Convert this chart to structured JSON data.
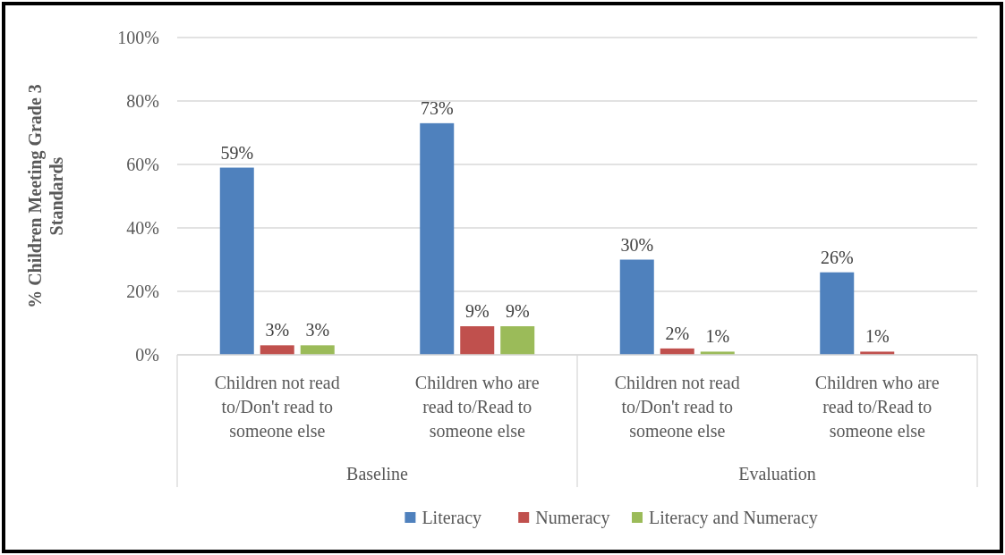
{
  "chart_data": {
    "type": "bar",
    "ylabel": "% Children Meeting Grade 3 Standards",
    "categories": [
      "Children not read to/Don't read to someone else",
      "Children who are read to/Read to someone else",
      "Children not read to/Don't read to someone else",
      "Children who are read to/Read to someone else"
    ],
    "annotations": [
      "Baseline",
      "Evaluation"
    ],
    "series": [
      {
        "name": "Literacy",
        "color": "#4f81bd",
        "values": [
          59,
          73,
          30,
          26
        ],
        "value_labels": [
          "59%",
          "73%",
          "30%",
          "26%"
        ]
      },
      {
        "name": "Numeracy",
        "color": "#c0504d",
        "values": [
          3,
          9,
          2,
          1
        ],
        "value_labels": [
          "3%",
          "9%",
          "2%",
          "1%"
        ]
      },
      {
        "name": "Literacy and Numeracy",
        "color": "#9bbb59",
        "values": [
          3,
          9,
          1,
          null
        ],
        "value_labels": [
          "3%",
          "9%",
          "1%",
          null
        ]
      }
    ],
    "ylim": [
      0,
      100
    ],
    "yticks": [
      {
        "value": 0,
        "label": "0%"
      },
      {
        "value": 20,
        "label": "20%"
      },
      {
        "value": 40,
        "label": "40%"
      },
      {
        "value": 60,
        "label": "60%"
      },
      {
        "value": 80,
        "label": "80%"
      },
      {
        "value": 100,
        "label": "100%"
      }
    ],
    "grid": "y",
    "legend": "bottom"
  }
}
